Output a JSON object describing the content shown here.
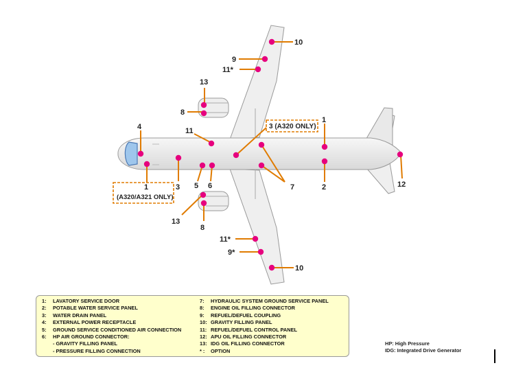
{
  "callouts": {
    "c1_top": "1",
    "c2": "2",
    "c3_center": "3 (A320 ONLY)",
    "c1_nose": "1",
    "c1_nose_note": "(A320/A321 ONLY)",
    "c3_lower": "3",
    "c4": "4",
    "c5": "5",
    "c6": "6",
    "c7": "7",
    "c8_upper": "8",
    "c8_lower": "8",
    "c9_upper": "9",
    "c9_lower": "9*",
    "c10_upper": "10",
    "c10_lower": "10",
    "c11_wing_upper": "11*",
    "c11_fuselage": "11",
    "c11_wing_lower": "11*",
    "c12": "12",
    "c13_upper": "13",
    "c13_lower": "13"
  },
  "legend": {
    "left": [
      {
        "num": "1:",
        "text": "LAVATORY SERVICE DOOR"
      },
      {
        "num": "2:",
        "text": "POTABLE WATER SERVICE PANEL"
      },
      {
        "num": "3:",
        "text": "WATER DRAIN PANEL"
      },
      {
        "num": "4:",
        "text": "EXTERNAL POWER RECEPTACLE"
      },
      {
        "num": "5:",
        "text": "GROUND SERVICE CONDITIONED AIR CONNECTION"
      },
      {
        "num": "6:",
        "text": "HP AIR GROUND CONNECTOR:"
      },
      {
        "num": "",
        "text": "- GRAVITY FILLING PANEL"
      },
      {
        "num": "",
        "text": "- PRESSURE FILLING CONNECTION"
      }
    ],
    "right": [
      {
        "num": "7:",
        "text": "HYDRAULIC SYSTEM GROUND SERVICE PANEL"
      },
      {
        "num": "8:",
        "text": "ENGINE OIL FILLING CONNECTOR"
      },
      {
        "num": "9:",
        "text": "REFUEL/DEFUEL COUPLING"
      },
      {
        "num": "10:",
        "text": "GRAVITY FILLING PANEL"
      },
      {
        "num": "11:",
        "text": "REFUEL/DEFUEL CONTROL PANEL"
      },
      {
        "num": "12:",
        "text": "APU OIL FILLING CONNECTOR"
      },
      {
        "num": "13:",
        "text": "IDG OIL FILLING CONNECTOR"
      },
      {
        "num": "* :",
        "text": "OPTION"
      }
    ]
  },
  "abbreviations": [
    "HP: High Pressure",
    "IDG: Integrated Drive Generator"
  ],
  "colors": {
    "dot": "#e6007e",
    "leader": "#e07b00",
    "legend_bg": "#ffffcc",
    "airframe": "#f0f0f0"
  }
}
